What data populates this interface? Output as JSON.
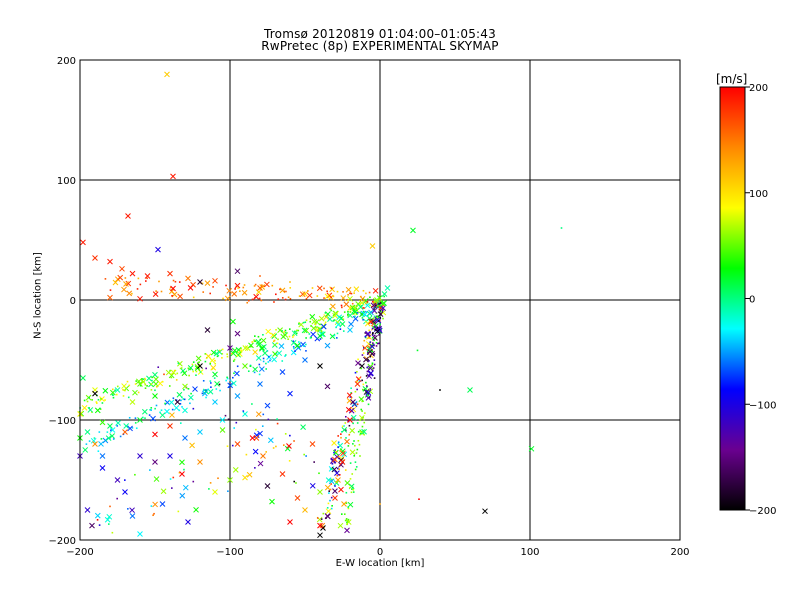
{
  "chart_data": {
    "type": "scatter",
    "title": "Tromsø 20120819 01:04:00–01:05:43",
    "subtitle": "RwPretec (8p) EXPERIMENTAL SKYMAP",
    "xlabel": "E-W location [km]",
    "ylabel": "N-S location [km]",
    "xlim": [
      -200,
      200
    ],
    "ylim": [
      -200,
      200
    ],
    "x_ticks": [
      "-200",
      "-100",
      "0",
      "100",
      "200"
    ],
    "y_ticks": [
      "200",
      "100",
      "0",
      "-100",
      "-200"
    ],
    "grid": true,
    "colorbar": {
      "label": "[m/s]",
      "range": [
        -200,
        200
      ],
      "ticks": [
        "200",
        "100",
        "0",
        "-100",
        "-200"
      ],
      "colormap": [
        "#000000",
        "#6a0090",
        "#0000ff",
        "#00ffff",
        "#00ff00",
        "#ffff00",
        "#ff8800",
        "#ff0000"
      ]
    },
    "markers": [
      "x",
      "dot"
    ],
    "points": [
      {
        "x": -142,
        "y": 188,
        "v": 110,
        "m": "x"
      },
      {
        "x": -138,
        "y": 103,
        "v": 190,
        "m": "x"
      },
      {
        "x": -168,
        "y": 70,
        "v": 190,
        "m": "x"
      },
      {
        "x": 22,
        "y": 58,
        "v": 20,
        "m": "x"
      },
      {
        "x": 121,
        "y": 60,
        "v": 0,
        "m": "dot"
      },
      {
        "x": -5,
        "y": 45,
        "v": 110,
        "m": "x"
      },
      {
        "x": -198,
        "y": 48,
        "v": 190,
        "m": "x"
      },
      {
        "x": -148,
        "y": 42,
        "v": -100,
        "m": "x"
      },
      {
        "x": -190,
        "y": 35,
        "v": 180,
        "m": "x"
      },
      {
        "x": -180,
        "y": 32,
        "v": 190,
        "m": "x"
      },
      {
        "x": -172,
        "y": 26,
        "v": 170,
        "m": "x"
      },
      {
        "x": -165,
        "y": 22,
        "v": 190,
        "m": "x"
      },
      {
        "x": -155,
        "y": 20,
        "v": 190,
        "m": "x"
      },
      {
        "x": -140,
        "y": 22,
        "v": 180,
        "m": "x"
      },
      {
        "x": -128,
        "y": 18,
        "v": 150,
        "m": "x"
      },
      {
        "x": -110,
        "y": 16,
        "v": 170,
        "m": "x"
      },
      {
        "x": -95,
        "y": 12,
        "v": 190,
        "m": "x"
      },
      {
        "x": -80,
        "y": 10,
        "v": 160,
        "m": "x"
      },
      {
        "x": -65,
        "y": 8,
        "v": 130,
        "m": "x"
      },
      {
        "x": -50,
        "y": 5,
        "v": 110,
        "m": "x"
      },
      {
        "x": -35,
        "y": 3,
        "v": 90,
        "m": "x"
      },
      {
        "x": -20,
        "y": 1,
        "v": 70,
        "m": "x"
      },
      {
        "x": -180,
        "y": 2,
        "v": 160,
        "m": "x"
      },
      {
        "x": -160,
        "y": 1,
        "v": 190,
        "m": "x"
      },
      {
        "x": -120,
        "y": 15,
        "v": -180,
        "m": "x"
      },
      {
        "x": -95,
        "y": 24,
        "v": -160,
        "m": "x"
      },
      {
        "x": -80,
        "y": 20,
        "v": 160,
        "m": "dot"
      },
      {
        "x": -60,
        "y": 15,
        "v": 120,
        "m": "dot"
      },
      {
        "x": -45,
        "y": 10,
        "v": 110,
        "m": "dot"
      },
      {
        "x": 5,
        "y": 10,
        "v": -10,
        "m": "x"
      },
      {
        "x": 3,
        "y": 5,
        "v": 0,
        "m": "x"
      },
      {
        "x": -2,
        "y": 0,
        "v": 60,
        "m": "x"
      },
      {
        "x": 2,
        "y": -3,
        "v": 40,
        "m": "x"
      },
      {
        "x": -115,
        "y": -25,
        "v": -180,
        "m": "x"
      },
      {
        "x": -95,
        "y": -28,
        "v": -150,
        "m": "x"
      },
      {
        "x": -98,
        "y": -18,
        "v": 30,
        "m": "x"
      },
      {
        "x": -100,
        "y": -40,
        "v": -140,
        "m": "x"
      },
      {
        "x": -198,
        "y": -65,
        "v": 10,
        "m": "x"
      },
      {
        "x": -190,
        "y": -75,
        "v": 80,
        "m": "x"
      },
      {
        "x": -175,
        "y": -75,
        "v": -10,
        "m": "x"
      },
      {
        "x": -160,
        "y": -70,
        "v": 50,
        "m": "x"
      },
      {
        "x": -190,
        "y": -78,
        "v": -200,
        "m": "x"
      },
      {
        "x": -200,
        "y": -95,
        "v": 90,
        "m": "x"
      },
      {
        "x": -185,
        "y": -102,
        "v": 40,
        "m": "x"
      },
      {
        "x": -165,
        "y": -85,
        "v": 70,
        "m": "x"
      },
      {
        "x": -150,
        "y": -80,
        "v": 30,
        "m": "x"
      },
      {
        "x": -130,
        "y": -72,
        "v": 60,
        "m": "x"
      },
      {
        "x": -110,
        "y": -62,
        "v": 20,
        "m": "x"
      },
      {
        "x": -90,
        "y": -55,
        "v": 50,
        "m": "x"
      },
      {
        "x": -70,
        "y": -45,
        "v": 40,
        "m": "x"
      },
      {
        "x": -55,
        "y": -38,
        "v": 30,
        "m": "x"
      },
      {
        "x": -40,
        "y": -30,
        "v": 20,
        "m": "x"
      },
      {
        "x": -25,
        "y": -20,
        "v": 10,
        "m": "x"
      },
      {
        "x": -12,
        "y": -12,
        "v": 30,
        "m": "x"
      },
      {
        "x": -200,
        "y": -115,
        "v": 30,
        "m": "x"
      },
      {
        "x": -195,
        "y": -110,
        "v": 0,
        "m": "x"
      },
      {
        "x": -180,
        "y": -105,
        "v": 10,
        "m": "x"
      },
      {
        "x": -160,
        "y": -100,
        "v": 20,
        "m": "x"
      },
      {
        "x": -145,
        "y": -96,
        "v": 0,
        "m": "x"
      },
      {
        "x": -130,
        "y": -92,
        "v": -20,
        "m": "x"
      },
      {
        "x": -110,
        "y": -85,
        "v": -40,
        "m": "x"
      },
      {
        "x": -95,
        "y": -80,
        "v": -50,
        "m": "x"
      },
      {
        "x": -80,
        "y": -70,
        "v": -60,
        "m": "x"
      },
      {
        "x": -65,
        "y": -60,
        "v": -70,
        "m": "x"
      },
      {
        "x": -50,
        "y": -50,
        "v": -60,
        "m": "x"
      },
      {
        "x": -35,
        "y": -38,
        "v": -50,
        "m": "x"
      },
      {
        "x": -20,
        "y": -25,
        "v": -40,
        "m": "x"
      },
      {
        "x": -10,
        "y": -12,
        "v": -30,
        "m": "x"
      },
      {
        "x": -185,
        "y": -140,
        "v": -90,
        "m": "x"
      },
      {
        "x": -175,
        "y": -150,
        "v": -120,
        "m": "x"
      },
      {
        "x": -160,
        "y": -130,
        "v": -110,
        "m": "x"
      },
      {
        "x": -150,
        "y": -135,
        "v": -150,
        "m": "x"
      },
      {
        "x": -140,
        "y": -130,
        "v": -100,
        "m": "x"
      },
      {
        "x": -130,
        "y": -115,
        "v": -60,
        "m": "x"
      },
      {
        "x": -120,
        "y": -110,
        "v": -40,
        "m": "x"
      },
      {
        "x": -105,
        "y": -100,
        "v": -30,
        "m": "x"
      },
      {
        "x": -90,
        "y": -95,
        "v": -20,
        "m": "x"
      },
      {
        "x": -75,
        "y": -88,
        "v": -70,
        "m": "x"
      },
      {
        "x": -60,
        "y": -78,
        "v": -80,
        "m": "x"
      },
      {
        "x": -195,
        "y": -175,
        "v": -110,
        "m": "x"
      },
      {
        "x": -192,
        "y": -188,
        "v": -160,
        "m": "x"
      },
      {
        "x": -170,
        "y": -160,
        "v": -90,
        "m": "x"
      },
      {
        "x": -165,
        "y": -180,
        "v": -60,
        "m": "x"
      },
      {
        "x": -160,
        "y": -195,
        "v": -30,
        "m": "x"
      },
      {
        "x": -145,
        "y": -170,
        "v": -70,
        "m": "x"
      },
      {
        "x": -128,
        "y": -185,
        "v": -100,
        "m": "x"
      },
      {
        "x": -132,
        "y": -145,
        "v": 200,
        "m": "x"
      },
      {
        "x": -150,
        "y": -112,
        "v": 200,
        "m": "x"
      },
      {
        "x": -120,
        "y": -135,
        "v": 140,
        "m": "x"
      },
      {
        "x": -110,
        "y": -160,
        "v": 80,
        "m": "x"
      },
      {
        "x": -100,
        "y": -150,
        "v": 60,
        "m": "x"
      },
      {
        "x": -95,
        "y": -120,
        "v": 170,
        "m": "x"
      },
      {
        "x": -90,
        "y": -148,
        "v": 100,
        "m": "x"
      },
      {
        "x": -85,
        "y": -115,
        "v": 200,
        "m": "x"
      },
      {
        "x": -78,
        "y": -130,
        "v": 150,
        "m": "x"
      },
      {
        "x": -75,
        "y": -155,
        "v": -180,
        "m": "x"
      },
      {
        "x": -72,
        "y": -168,
        "v": 30,
        "m": "x"
      },
      {
        "x": -65,
        "y": -145,
        "v": 180,
        "m": "x"
      },
      {
        "x": -60,
        "y": -185,
        "v": 200,
        "m": "x"
      },
      {
        "x": -55,
        "y": -165,
        "v": 170,
        "m": "x"
      },
      {
        "x": -50,
        "y": -175,
        "v": 120,
        "m": "x"
      },
      {
        "x": -45,
        "y": -120,
        "v": 170,
        "m": "x"
      },
      {
        "x": -40,
        "y": -160,
        "v": 60,
        "m": "x"
      },
      {
        "x": -38,
        "y": -190,
        "v": -200,
        "m": "x"
      },
      {
        "x": -35,
        "y": -180,
        "v": -150,
        "m": "x"
      },
      {
        "x": -30,
        "y": -165,
        "v": 180,
        "m": "x"
      },
      {
        "x": -28,
        "y": -150,
        "v": 130,
        "m": "x"
      },
      {
        "x": -25,
        "y": -135,
        "v": 190,
        "m": "x"
      },
      {
        "x": -22,
        "y": -118,
        "v": 150,
        "m": "x"
      },
      {
        "x": -20,
        "y": -100,
        "v": 200,
        "m": "x"
      },
      {
        "x": -18,
        "y": -85,
        "v": -160,
        "m": "x"
      },
      {
        "x": -15,
        "y": -70,
        "v": 180,
        "m": "x"
      },
      {
        "x": -12,
        "y": -55,
        "v": -190,
        "m": "x"
      },
      {
        "x": -10,
        "y": -40,
        "v": 160,
        "m": "x"
      },
      {
        "x": -8,
        "y": -28,
        "v": -120,
        "m": "x"
      },
      {
        "x": -6,
        "y": -18,
        "v": 190,
        "m": "x"
      },
      {
        "x": -26,
        "y": -158,
        "v": 190,
        "m": "x"
      },
      {
        "x": -40,
        "y": -188,
        "v": 200,
        "m": "x"
      },
      {
        "x": -24,
        "y": -170,
        "v": 130,
        "m": "x"
      },
      {
        "x": -22,
        "y": -192,
        "v": -140,
        "m": "x"
      },
      {
        "x": -40,
        "y": -55,
        "v": -200,
        "m": "x"
      },
      {
        "x": -35,
        "y": -72,
        "v": -160,
        "m": "x"
      },
      {
        "x": -120,
        "y": -55,
        "v": -200,
        "m": "x"
      },
      {
        "x": -135,
        "y": -85,
        "v": -180,
        "m": "x"
      },
      {
        "x": -185,
        "y": -130,
        "v": -60,
        "m": "x"
      },
      {
        "x": -200,
        "y": -130,
        "v": -120,
        "m": "x"
      },
      {
        "x": -140,
        "y": -105,
        "v": 180,
        "m": "x"
      },
      {
        "x": -170,
        "y": -110,
        "v": 160,
        "m": "x"
      },
      {
        "x": -190,
        "y": -120,
        "v": 140,
        "m": "x"
      },
      {
        "x": -180,
        "y": -172,
        "v": 160,
        "m": "dot"
      },
      {
        "x": 60,
        "y": -75,
        "v": 10,
        "m": "x"
      },
      {
        "x": 101,
        "y": -124,
        "v": 20,
        "m": "x"
      },
      {
        "x": 70,
        "y": -176,
        "v": -200,
        "m": "x"
      },
      {
        "x": 26,
        "y": -166,
        "v": 200,
        "m": "dot"
      },
      {
        "x": 40,
        "y": -75,
        "v": -200,
        "m": "dot"
      },
      {
        "x": 25,
        "y": -42,
        "v": 20,
        "m": "dot"
      },
      {
        "x": 0,
        "y": -170,
        "v": 130,
        "m": "dot"
      },
      {
        "x": -40,
        "y": -196,
        "v": -200,
        "m": "x"
      }
    ],
    "bands": [
      {
        "x0": -200,
        "y0": -90,
        "x1": 0,
        "y1": 0,
        "n": 260,
        "spread": 6,
        "vmin": 0,
        "vmax": 110,
        "xfrac": 0.35
      },
      {
        "x0": -200,
        "y0": -125,
        "x1": 0,
        "y1": -5,
        "n": 180,
        "spread": 6,
        "vmin": -80,
        "vmax": 20,
        "xfrac": 0.3
      },
      {
        "x0": -180,
        "y0": 12,
        "x1": 0,
        "y1": 0,
        "n": 120,
        "spread": 8,
        "vmin": 100,
        "vmax": 200,
        "xfrac": 0.35
      },
      {
        "x0": -40,
        "y0": -190,
        "x1": 0,
        "y1": 0,
        "n": 150,
        "spread": 4,
        "vmin": -200,
        "vmax": 200,
        "xfrac": 0.35
      },
      {
        "x0": -25,
        "y0": -195,
        "x1": 0,
        "y1": -10,
        "n": 80,
        "spread": 3,
        "vmin": 0,
        "vmax": 80,
        "xfrac": 0.2
      },
      {
        "x0": -8,
        "y0": -80,
        "x1": 0,
        "y1": 0,
        "n": 60,
        "spread": 3,
        "vmin": -200,
        "vmax": -100,
        "xfrac": 0.3
      },
      {
        "x0": -200,
        "y0": -200,
        "x1": -60,
        "y1": -100,
        "n": 60,
        "spread": 25,
        "vmin": -150,
        "vmax": 200,
        "xfrac": 0.3
      },
      {
        "x0": -140,
        "y0": -60,
        "x1": -40,
        "y1": -140,
        "n": 40,
        "spread": 25,
        "vmin": -200,
        "vmax": 200,
        "xfrac": 0.2
      }
    ]
  }
}
